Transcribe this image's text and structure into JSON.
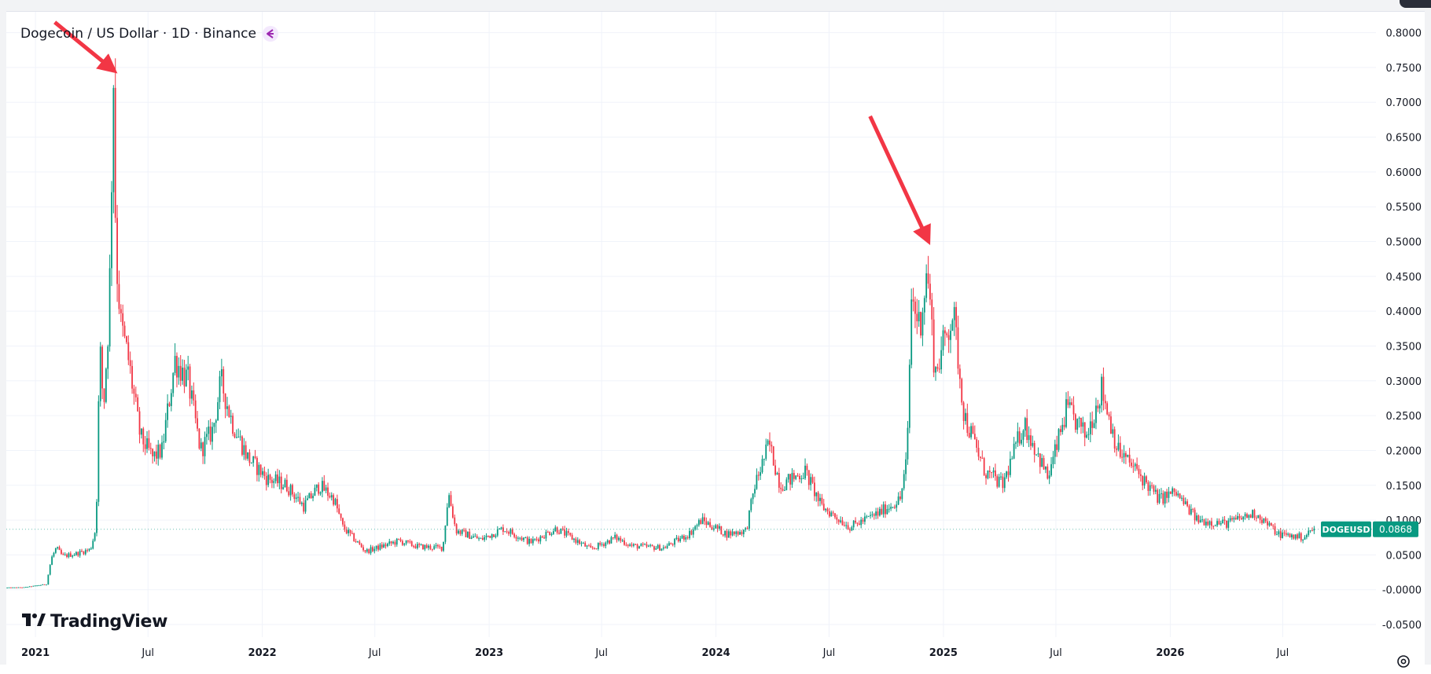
{
  "legend": {
    "title": "Dogecoin / US Dollar · 1D · Binance"
  },
  "logo": {
    "text": "TradingView"
  },
  "price_label": {
    "symbol": "DOGEUSD",
    "price": "0.0868",
    "color": "#089981"
  },
  "colors": {
    "up": "#089981",
    "down": "#f23645",
    "arrow": "#f23645",
    "grid": "#f0f3fa",
    "text": "#131722",
    "axis_text": "#131722"
  },
  "icons": {
    "legend": "tradingview-purple-icon",
    "settings": "gear-icon",
    "logo": "tradingview-logo-icon"
  },
  "chart_data": {
    "type": "candlestick",
    "title": "Dogecoin / US Dollar · 1D · Binance",
    "y_ticks": [
      "0.8000",
      "0.7500",
      "0.7000",
      "0.6500",
      "0.6000",
      "0.5500",
      "0.5000",
      "0.4500",
      "0.4000",
      "0.3500",
      "0.3000",
      "0.2500",
      "0.2000",
      "0.1500",
      "0.1000",
      "0.0500",
      "-0.0000",
      "-0.0500"
    ],
    "y_tick_values": [
      0.8,
      0.75,
      0.7,
      0.65,
      0.6,
      0.55,
      0.5,
      0.45,
      0.4,
      0.35,
      0.3,
      0.25,
      0.2,
      0.15,
      0.1,
      0.05,
      0.0,
      -0.05
    ],
    "ylim": [
      -0.068,
      0.83
    ],
    "x_ticks": [
      "2021",
      "Jul",
      "2022",
      "Jul",
      "2023",
      "Jul",
      "2024",
      "Jul",
      "2025",
      "Jul",
      "2026",
      "Jul"
    ],
    "x_tick_bold": [
      true,
      false,
      true,
      false,
      true,
      false,
      true,
      false,
      true,
      false,
      true,
      false
    ],
    "x_tick_dates": [
      "2021-01-01",
      "2021-07-01",
      "2022-01-01",
      "2022-07-01",
      "2023-01-01",
      "2023-07-01",
      "2024-01-01",
      "2024-07-01",
      "2025-01-01",
      "2025-07-01",
      "2026-01-01",
      "2026-07-01"
    ],
    "xlim": [
      "2020-11-15",
      "2026-11-28"
    ],
    "grid": true,
    "series": [
      {
        "name": "DOGEUSD",
        "points": [
          [
            "2020-11-15",
            0.003
          ],
          [
            "2020-12-15",
            0.0035
          ],
          [
            "2021-01-20",
            0.008
          ],
          [
            "2021-01-28",
            0.045
          ],
          [
            "2021-02-05",
            0.06
          ],
          [
            "2021-02-15",
            0.048
          ],
          [
            "2021-03-10",
            0.052
          ],
          [
            "2021-04-01",
            0.058
          ],
          [
            "2021-04-10",
            0.09
          ],
          [
            "2021-04-16",
            0.35
          ],
          [
            "2021-04-22",
            0.26
          ],
          [
            "2021-05-01",
            0.4
          ],
          [
            "2021-05-08",
            0.74
          ],
          [
            "2021-05-12",
            0.48
          ],
          [
            "2021-05-20",
            0.38
          ],
          [
            "2021-06-01",
            0.33
          ],
          [
            "2021-06-20",
            0.22
          ],
          [
            "2021-07-10",
            0.19
          ],
          [
            "2021-07-25",
            0.2
          ],
          [
            "2021-08-15",
            0.33
          ],
          [
            "2021-09-05",
            0.3
          ],
          [
            "2021-09-25",
            0.2
          ],
          [
            "2021-10-15",
            0.23
          ],
          [
            "2021-10-28",
            0.3
          ],
          [
            "2021-11-15",
            0.24
          ],
          [
            "2021-12-10",
            0.19
          ],
          [
            "2022-01-10",
            0.16
          ],
          [
            "2022-02-10",
            0.15
          ],
          [
            "2022-03-10",
            0.12
          ],
          [
            "2022-04-05",
            0.15
          ],
          [
            "2022-04-28",
            0.13
          ],
          [
            "2022-05-12",
            0.09
          ],
          [
            "2022-06-18",
            0.055
          ],
          [
            "2022-08-10",
            0.07
          ],
          [
            "2022-09-10",
            0.062
          ],
          [
            "2022-10-20",
            0.06
          ],
          [
            "2022-10-29",
            0.14
          ],
          [
            "2022-11-10",
            0.085
          ],
          [
            "2022-12-20",
            0.072
          ],
          [
            "2023-01-25",
            0.088
          ],
          [
            "2023-03-10",
            0.068
          ],
          [
            "2023-04-20",
            0.088
          ],
          [
            "2023-05-20",
            0.072
          ],
          [
            "2023-06-15",
            0.058
          ],
          [
            "2023-07-25",
            0.075
          ],
          [
            "2023-08-20",
            0.063
          ],
          [
            "2023-10-10",
            0.06
          ],
          [
            "2023-11-20",
            0.08
          ],
          [
            "2023-12-10",
            0.1
          ],
          [
            "2024-01-20",
            0.08
          ],
          [
            "2024-02-20",
            0.085
          ],
          [
            "2024-03-05",
            0.15
          ],
          [
            "2024-03-28",
            0.21
          ],
          [
            "2024-04-15",
            0.15
          ],
          [
            "2024-05-25",
            0.17
          ],
          [
            "2024-06-20",
            0.12
          ],
          [
            "2024-08-05",
            0.09
          ],
          [
            "2024-09-20",
            0.11
          ],
          [
            "2024-10-25",
            0.13
          ],
          [
            "2024-11-05",
            0.19
          ],
          [
            "2024-11-12",
            0.42
          ],
          [
            "2024-11-25",
            0.38
          ],
          [
            "2024-12-08",
            0.46
          ],
          [
            "2024-12-20",
            0.31
          ],
          [
            "2025-01-18",
            0.4
          ],
          [
            "2025-02-05",
            0.25
          ],
          [
            "2025-03-10",
            0.17
          ],
          [
            "2025-04-08",
            0.15
          ],
          [
            "2025-05-12",
            0.24
          ],
          [
            "2025-06-20",
            0.16
          ],
          [
            "2025-07-20",
            0.26
          ],
          [
            "2025-08-20",
            0.22
          ],
          [
            "2025-09-14",
            0.29
          ],
          [
            "2025-10-10",
            0.2
          ],
          [
            "2025-11-10",
            0.17
          ],
          [
            "2025-12-15",
            0.13
          ],
          [
            "2026-01-10",
            0.14
          ],
          [
            "2026-02-15",
            0.1
          ],
          [
            "2026-04-01",
            0.095
          ],
          [
            "2026-05-20",
            0.11
          ],
          [
            "2026-06-25",
            0.08
          ],
          [
            "2026-08-05",
            0.075
          ],
          [
            "2026-08-20",
            0.087
          ]
        ]
      }
    ],
    "annotations": [
      {
        "type": "arrow",
        "tip_date": "2021-05-08",
        "tip_value": 0.745,
        "tail_date": "2021-02-01",
        "tail_value": 0.815
      },
      {
        "type": "arrow",
        "tip_date": "2024-12-08",
        "tip_value": 0.5,
        "tail_date": "2024-09-05",
        "tail_value": 0.68
      }
    ]
  }
}
